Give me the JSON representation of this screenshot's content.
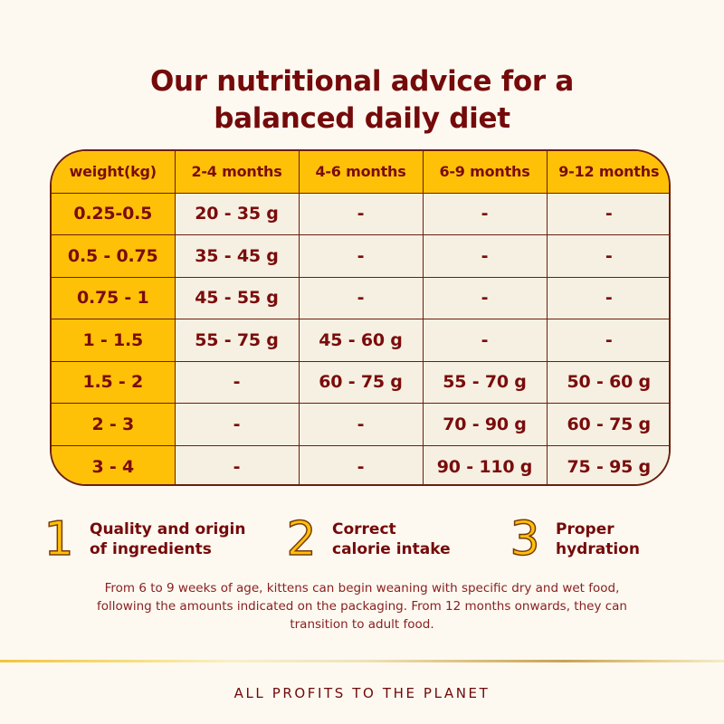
{
  "title": {
    "line1": "Our nutritional advice for a",
    "line2": "balanced daily diet"
  },
  "colors": {
    "background": "#fdf9f1",
    "accent_yellow": "#ffc107",
    "text_maroon": "#740a0a",
    "cell_bg": "#f6f0e2",
    "border": "#6b1e0d"
  },
  "table": {
    "headers": [
      "weight(kg)",
      "2-4 months",
      "4-6 months",
      "6-9 months",
      "9-12 months"
    ],
    "rows": [
      [
        "0.25-0.5",
        "20 - 35 g",
        "-",
        "-",
        "-"
      ],
      [
        "0.5 - 0.75",
        "35 - 45 g",
        "-",
        "-",
        "-"
      ],
      [
        "0.75 - 1",
        "45 - 55 g",
        "-",
        "-",
        "-"
      ],
      [
        "1 - 1.5",
        "55 - 75 g",
        "45 - 60 g",
        "-",
        "-"
      ],
      [
        "1.5 - 2",
        "-",
        "60 - 75 g",
        "55 - 70 g",
        "50 - 60 g"
      ],
      [
        "2 - 3",
        "-",
        "-",
        "70 - 90 g",
        "60 - 75 g"
      ],
      [
        "3 - 4",
        "-",
        "-",
        "90 - 110 g",
        "75 - 95 g"
      ]
    ]
  },
  "features": [
    {
      "number": "1",
      "line1": "Quality and origin",
      "line2": "of ingredients"
    },
    {
      "number": "2",
      "line1": "Correct",
      "line2": "calorie intake"
    },
    {
      "number": "3",
      "line1": "Proper",
      "line2": "hydration"
    }
  ],
  "note": {
    "line1": "From 6 to 9 weeks of age, kittens can begin weaning with specific dry and wet food,",
    "line2": "following the amounts indicated on the packaging. From 12 months onwards, they can",
    "line3": "transition to adult food."
  },
  "footer": {
    "tagline": "ALL PROFITS TO THE PLANET"
  }
}
